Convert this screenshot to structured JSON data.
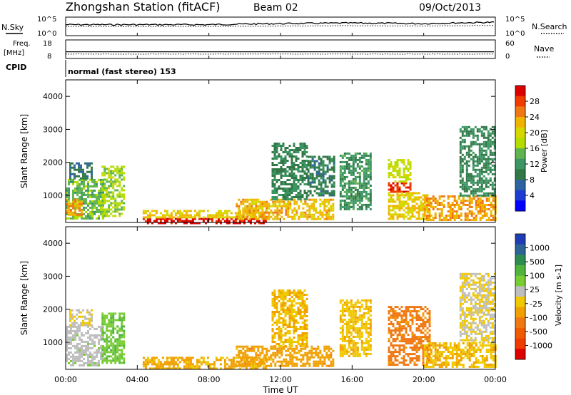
{
  "header": {
    "station_title": "Zhongshan Station (fitACF)",
    "beam_label": "Beam 02",
    "date_label": "09/Oct/2013"
  },
  "top_panels": {
    "nsky": {
      "label": "N.Sky",
      "right_label": "N.Search",
      "left_ticks": [
        "10^5",
        "10^0"
      ],
      "right_ticks": [
        "10^5",
        "10^0"
      ]
    },
    "freq": {
      "label_line1": "Freq.",
      "label_line2": "[MHz]",
      "left_ticks": [
        "18",
        "8"
      ],
      "right_label": "Nave",
      "right_ticks": [
        "60",
        "0"
      ]
    },
    "cpid": {
      "label": "CPID",
      "text": "normal (fast stereo) 153"
    }
  },
  "y_axis": {
    "label": "Slant Range [km]",
    "ticks": [
      "4000",
      "3000",
      "2000",
      "1000"
    ]
  },
  "x_axis": {
    "label": "Time UT",
    "ticks": [
      "00:00",
      "04:00",
      "08:00",
      "12:00",
      "16:00",
      "20:00",
      "00:00"
    ]
  },
  "power_colorbar": {
    "label": "Power [dB]",
    "ticks": [
      "28",
      "24",
      "20",
      "16",
      "12",
      "8",
      "4"
    ],
    "colors": [
      "#dc0000",
      "#f03c00",
      "#f07814",
      "#f0b400",
      "#d7d700",
      "#b4dc00",
      "#5fb450",
      "#3c9664",
      "#327846",
      "#2d64a0",
      "#1e3cd2",
      "#0000ff"
    ]
  },
  "velocity_colorbar": {
    "label": "Velocity [m s-1]",
    "ticks": [
      "1000",
      "500",
      "100",
      "25",
      "-25",
      "-100",
      "-500",
      "-1000"
    ],
    "colors": [
      "#1e3cb4",
      "#2d6496",
      "#2d8c50",
      "#50b43c",
      "#78cd32",
      "#bebebe",
      "#f0c800",
      "#f0a000",
      "#f07814",
      "#f05a00",
      "#f03c00",
      "#dc0000"
    ]
  },
  "chart_data": [
    {
      "type": "line",
      "title": "N.Sky / N.Search",
      "y_scale": "log",
      "ylim": [
        1,
        100000
      ],
      "x": [
        "00:00",
        "04:00",
        "08:00",
        "12:00",
        "16:00",
        "20:00",
        "00:00"
      ],
      "series": [
        {
          "name": "N.Sky",
          "values": [
            1000,
            1000,
            1000,
            2000,
            3000,
            2000,
            5000
          ]
        },
        {
          "name": "N.Search",
          "values": [
            300,
            300,
            300,
            400,
            500,
            400,
            600
          ]
        }
      ]
    },
    {
      "type": "line",
      "title": "Freq. / Nave",
      "x": [
        "00:00",
        "04:00",
        "08:00",
        "12:00",
        "16:00",
        "20:00",
        "00:00"
      ],
      "series": [
        {
          "name": "Freq.",
          "values": [
            11.5,
            11.5,
            11.5,
            11.5,
            11.5,
            11.5,
            11.5
          ]
        },
        {
          "name": "Nave",
          "values": [
            13,
            13,
            13,
            13,
            13,
            13,
            13
          ]
        }
      ],
      "ylim_left": [
        8,
        18
      ],
      "ylim_right": [
        0,
        60
      ]
    },
    {
      "type": "heatmap",
      "title": "Power [dB]",
      "xlabel": "Time UT",
      "ylabel": "Slant Range [km]",
      "xlim": [
        0,
        24
      ],
      "ylim": [
        180,
        4500
      ],
      "clim": [
        0,
        30
      ],
      "regions": [
        {
          "t0": 0.0,
          "t1": 2.1,
          "r0": 300,
          "r1": 1500,
          "value": 14
        },
        {
          "t0": 0.0,
          "t1": 0.9,
          "r0": 400,
          "r1": 900,
          "value": 22
        },
        {
          "t0": 0.2,
          "t1": 1.5,
          "r0": 1500,
          "r1": 2000,
          "value": 8
        },
        {
          "t0": 2.0,
          "t1": 3.2,
          "r0": 400,
          "r1": 1900,
          "value": 16
        },
        {
          "t0": 4.3,
          "t1": 11.2,
          "r0": 180,
          "r1": 320,
          "value": 29
        },
        {
          "t0": 4.3,
          "t1": 11.2,
          "r0": 320,
          "r1": 560,
          "value": 20
        },
        {
          "t0": 9.5,
          "t1": 15.0,
          "r0": 300,
          "r1": 900,
          "value": 21
        },
        {
          "t0": 11.5,
          "t1": 13.5,
          "r0": 900,
          "r1": 2600,
          "value": 10
        },
        {
          "t0": 13.5,
          "t1": 15.0,
          "r0": 1000,
          "r1": 2200,
          "value": 9
        },
        {
          "t0": 15.3,
          "t1": 17.0,
          "r0": 600,
          "r1": 2300,
          "value": 11
        },
        {
          "t0": 18.0,
          "t1": 19.3,
          "r0": 1100,
          "r1": 1400,
          "value": 27
        },
        {
          "t0": 18.0,
          "t1": 19.3,
          "r0": 1400,
          "r1": 2100,
          "value": 17
        },
        {
          "t0": 18.0,
          "t1": 20.3,
          "r0": 300,
          "r1": 1100,
          "value": 20
        },
        {
          "t0": 20.0,
          "t1": 24.0,
          "r0": 250,
          "r1": 1000,
          "value": 22
        },
        {
          "t0": 22.0,
          "t1": 24.0,
          "r0": 1000,
          "r1": 3100,
          "value": 10
        }
      ]
    },
    {
      "type": "heatmap",
      "title": "Velocity [m s-1]",
      "xlabel": "Time UT",
      "ylabel": "Slant Range [km]",
      "xlim": [
        0,
        24
      ],
      "ylim": [
        180,
        4500
      ],
      "clim": [
        -1000,
        1000
      ],
      "regions": [
        {
          "t0": 0.0,
          "t1": 2.1,
          "r0": 300,
          "r1": 1500,
          "value": 100
        },
        {
          "t0": 0.2,
          "t1": 1.5,
          "r0": 1500,
          "r1": 2000,
          "value": 0
        },
        {
          "t0": 2.0,
          "t1": 3.2,
          "r0": 400,
          "r1": 1900,
          "value": 300
        },
        {
          "t0": 4.3,
          "t1": 11.2,
          "r0": 180,
          "r1": 560,
          "value": -200
        },
        {
          "t0": 9.5,
          "t1": 15.0,
          "r0": 300,
          "r1": 900,
          "value": -250
        },
        {
          "t0": 11.5,
          "t1": 13.5,
          "r0": 900,
          "r1": 2600,
          "value": -150
        },
        {
          "t0": 15.3,
          "t1": 17.0,
          "r0": 600,
          "r1": 2300,
          "value": -120
        },
        {
          "t0": 18.0,
          "t1": 20.3,
          "r0": 300,
          "r1": 2100,
          "value": -400
        },
        {
          "t0": 20.0,
          "t1": 24.0,
          "r0": 250,
          "r1": 1000,
          "value": -150
        },
        {
          "t0": 22.0,
          "t1": 24.0,
          "r0": 1000,
          "r1": 3100,
          "value": 0
        }
      ]
    }
  ]
}
